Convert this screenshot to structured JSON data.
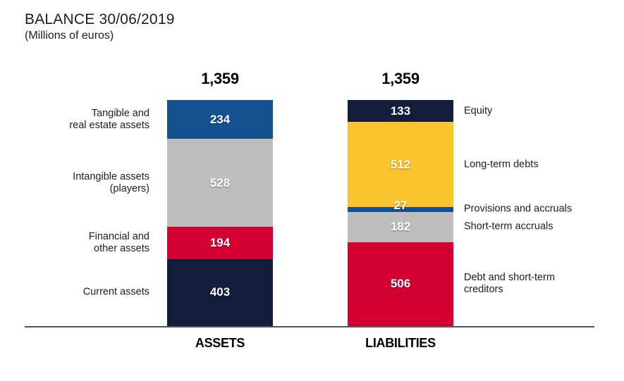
{
  "title": "BALANCE 30/06/2019",
  "subtitle": "(Millions of euros)",
  "chart_data": {
    "type": "bar",
    "subtype": "stacked_columns",
    "title": "BALANCE 30/06/2019",
    "unit": "Millions of euros",
    "legend_position": "side-labels",
    "grid": false,
    "axis_line": "bottom",
    "columns": [
      {
        "axis_label": "ASSETS",
        "total": 1359,
        "total_label": "1,359",
        "label_side": "left",
        "segments": [
          {
            "label": "Tangible and real estate assets",
            "label_lines": [
              "Tangible and",
              "real estate assets"
            ],
            "value": 234,
            "color": "#15508F"
          },
          {
            "label": "Intangible assets (players)",
            "label_lines": [
              "Intangible assets",
              "(players)"
            ],
            "value": 528,
            "color": "#BFBEBE"
          },
          {
            "label": "Financial and other assets",
            "label_lines": [
              "Financial and",
              "other assets"
            ],
            "value": 194,
            "color": "#D50032"
          },
          {
            "label": "Current assets",
            "label_lines": [
              "Current assets"
            ],
            "value": 403,
            "color": "#121E3C"
          }
        ]
      },
      {
        "axis_label": "LIABILITIES",
        "total": 1359,
        "total_label": "1,359",
        "label_side": "right",
        "segments": [
          {
            "label": "Equity",
            "label_lines": [
              "Equity"
            ],
            "value": 133,
            "color": "#121E3C"
          },
          {
            "label": "Long-term debts",
            "label_lines": [
              "Long-term debts"
            ],
            "value": 512,
            "color": "#FBC32D"
          },
          {
            "label": "Provisions and accruals",
            "label_lines": [
              "Provisions and accruals"
            ],
            "value": 27,
            "color": "#15508F"
          },
          {
            "label": "Short-term accruals",
            "label_lines": [
              "Short-term accruals"
            ],
            "value": 182,
            "color": "#BFBEBE"
          },
          {
            "label": "Debt and short-term creditors",
            "label_lines": [
              "Debt and short-term",
              "creditors"
            ],
            "value": 506,
            "color": "#D50032"
          }
        ]
      }
    ],
    "colors": {
      "blue": "#15508F",
      "navy": "#121E3C",
      "yellow": "#FBC32D",
      "red": "#D50032",
      "gray": "#BFBEBE",
      "axis": "#55565A"
    }
  }
}
